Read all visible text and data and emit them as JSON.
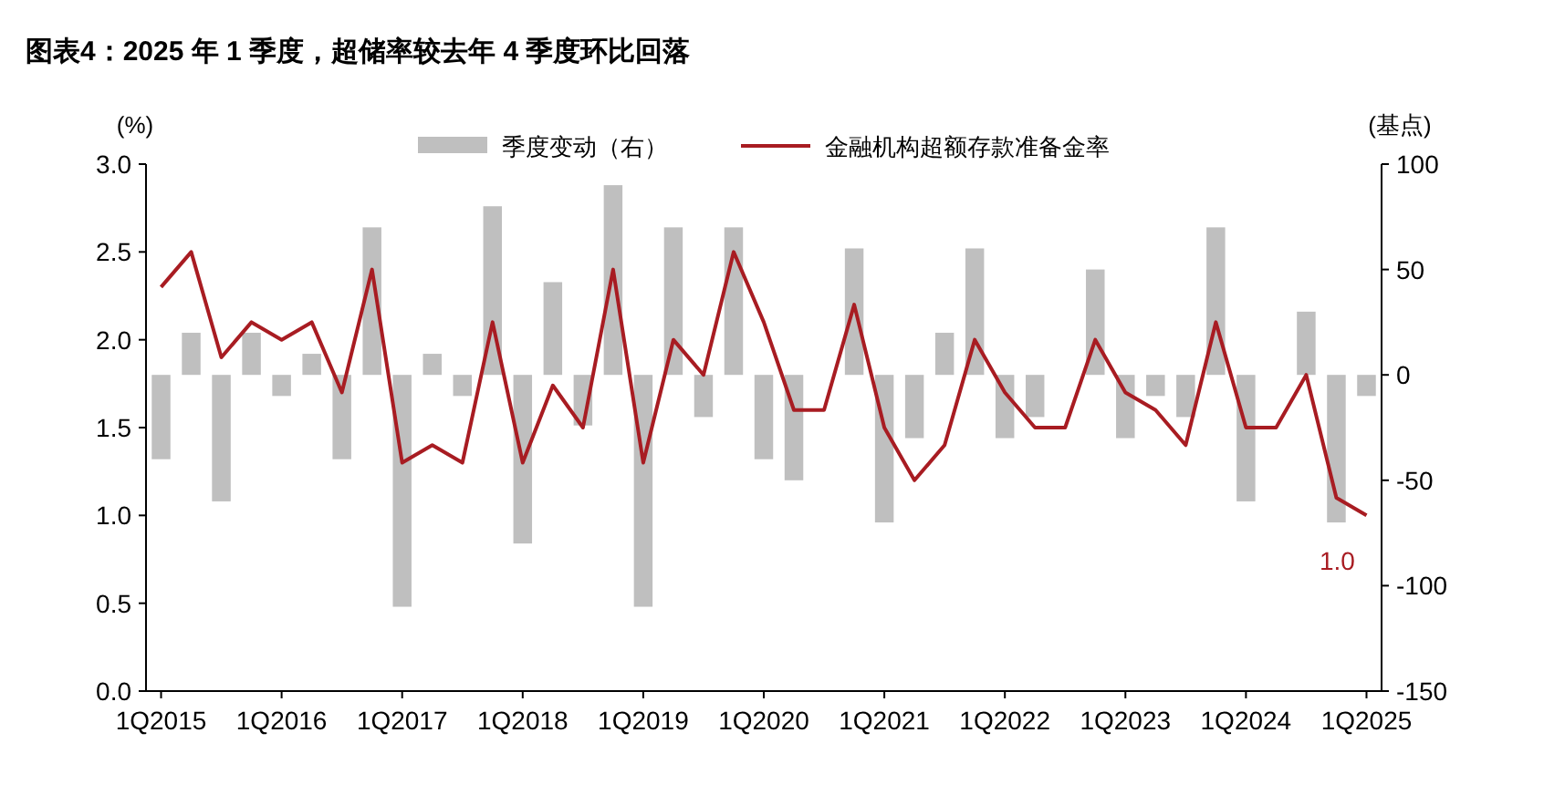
{
  "chart_data": {
    "type": "bar",
    "title": "图表4：2025 年 1 季度，超储率较去年 4 季度环比回落",
    "ylabel": "(%)",
    "y2label": "(基点)",
    "categories": [
      "1Q2015",
      null,
      null,
      null,
      "1Q2016",
      null,
      null,
      null,
      "1Q2017",
      null,
      null,
      null,
      "1Q2018",
      null,
      null,
      null,
      "1Q2019",
      null,
      null,
      null,
      "1Q2020",
      null,
      null,
      null,
      "1Q2021",
      null,
      null,
      null,
      "1Q2022",
      null,
      null,
      null,
      "1Q2023",
      null,
      null,
      null,
      "1Q2024",
      null,
      null,
      null,
      "1Q2025"
    ],
    "series": [
      {
        "name": "季度变动（右）",
        "axis": "y2",
        "color": "#bfbfbf",
        "values": [
          -40,
          20,
          -60,
          20,
          -10,
          10,
          -40,
          70,
          -110,
          10,
          -10,
          80,
          -80,
          44,
          -24,
          90,
          -110,
          70,
          -20,
          70,
          -40,
          -50,
          0,
          60,
          -70,
          -30,
          20,
          60,
          -30,
          -20,
          0,
          50,
          -30,
          -10,
          -20,
          70,
          -60,
          0,
          30,
          -70,
          -10
        ]
      },
      {
        "name": "金融机构超额存款准备金率",
        "type": "line",
        "color": "#a81c22",
        "values": [
          2.3,
          2.5,
          1.9,
          2.1,
          2.0,
          2.1,
          1.7,
          2.4,
          1.3,
          1.4,
          1.3,
          2.1,
          1.3,
          1.74,
          1.5,
          2.4,
          1.3,
          2.0,
          1.8,
          2.5,
          2.1,
          1.6,
          1.6,
          2.2,
          1.5,
          1.2,
          1.4,
          2.0,
          1.7,
          1.5,
          1.5,
          2.0,
          1.7,
          1.6,
          1.4,
          2.1,
          1.5,
          1.5,
          1.8,
          1.1,
          1.0
        ]
      }
    ],
    "ylim": [
      0,
      3
    ],
    "yticks": [
      {
        "value": 0,
        "label": "0.0"
      },
      {
        "value": 0.5,
        "label": "0.5"
      },
      {
        "value": 1,
        "label": "1.0"
      },
      {
        "value": 1.5,
        "label": "1.5"
      },
      {
        "value": 2,
        "label": "2.0"
      },
      {
        "value": 2.5,
        "label": "2.5"
      },
      {
        "value": 3,
        "label": "3.0"
      }
    ],
    "y2lim": [
      -150,
      100
    ],
    "y2ticks": [
      -150,
      -100,
      -50,
      0,
      50,
      100
    ],
    "legend": "top",
    "grid": false,
    "annotations": [
      {
        "text": "1.0",
        "x": "1Q2025",
        "y": 1.0
      }
    ]
  }
}
